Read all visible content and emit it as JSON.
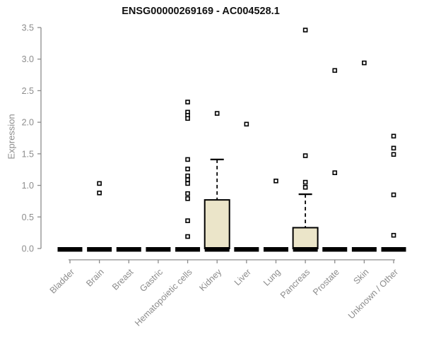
{
  "page": {
    "background": "#ffffff"
  },
  "chart_data": {
    "type": "boxplot",
    "title": "ENSG00000269169 - AC004528.1",
    "ylabel": "Expression",
    "ylim": [
      0,
      3.5
    ],
    "yticks": [
      0.0,
      0.5,
      1.0,
      1.5,
      2.0,
      2.5,
      3.0,
      3.5
    ],
    "grid": false,
    "legend": "none",
    "categories": [
      "Bladder",
      "Brain",
      "Breast",
      "Gastric",
      "Hematopoietic cells",
      "Kidney",
      "Liver",
      "Lung",
      "Pancreas",
      "Prostate",
      "Skin",
      "Unknown / Other"
    ],
    "boxes": [
      {
        "q1": 0,
        "median": 0,
        "q3": 0,
        "whisker_low": 0,
        "whisker_high": 0,
        "outliers": []
      },
      {
        "q1": 0,
        "median": 0,
        "q3": 0,
        "whisker_low": 0,
        "whisker_high": 0,
        "outliers": [
          1.03,
          0.88
        ]
      },
      {
        "q1": 0,
        "median": 0,
        "q3": 0,
        "whisker_low": 0,
        "whisker_high": 0,
        "outliers": []
      },
      {
        "q1": 0,
        "median": 0,
        "q3": 0,
        "whisker_low": 0,
        "whisker_high": 0,
        "outliers": []
      },
      {
        "q1": 0,
        "median": 0,
        "q3": 0,
        "whisker_low": 0,
        "whisker_high": 0,
        "outliers": [
          2.32,
          2.16,
          2.11,
          2.06,
          1.41,
          1.26,
          1.15,
          1.09,
          1.03,
          0.87,
          0.79,
          0.44,
          0.19
        ]
      },
      {
        "q1": 0,
        "median": 0,
        "q3": 0.77,
        "whisker_low": 0,
        "whisker_high": 1.41,
        "outliers": [
          2.14
        ]
      },
      {
        "q1": 0,
        "median": 0,
        "q3": 0,
        "whisker_low": 0,
        "whisker_high": 0,
        "outliers": [
          1.97
        ]
      },
      {
        "q1": 0,
        "median": 0,
        "q3": 0,
        "whisker_low": 0,
        "whisker_high": 0,
        "outliers": [
          1.07
        ]
      },
      {
        "q1": 0,
        "median": 0,
        "q3": 0.33,
        "whisker_low": 0,
        "whisker_high": 0.86,
        "outliers": [
          3.46,
          1.47,
          1.05,
          0.97
        ]
      },
      {
        "q1": 0,
        "median": 0,
        "q3": 0,
        "whisker_low": 0,
        "whisker_high": 0,
        "outliers": [
          2.82,
          1.2
        ]
      },
      {
        "q1": 0,
        "median": 0,
        "q3": 0,
        "whisker_low": 0,
        "whisker_high": 0,
        "outliers": [
          2.94
        ]
      },
      {
        "q1": 0,
        "median": 0,
        "q3": 0,
        "whisker_low": 0,
        "whisker_high": 0,
        "outliers": [
          1.78,
          1.59,
          1.49,
          0.85,
          0.21
        ]
      }
    ],
    "colors": {
      "box_fill": "#ebe5c9",
      "box_stroke": "#000000",
      "zero_bar": "#000000",
      "axis": "#8c8c8c",
      "tick_label": "#8c8c8c",
      "title": "#111111"
    }
  }
}
